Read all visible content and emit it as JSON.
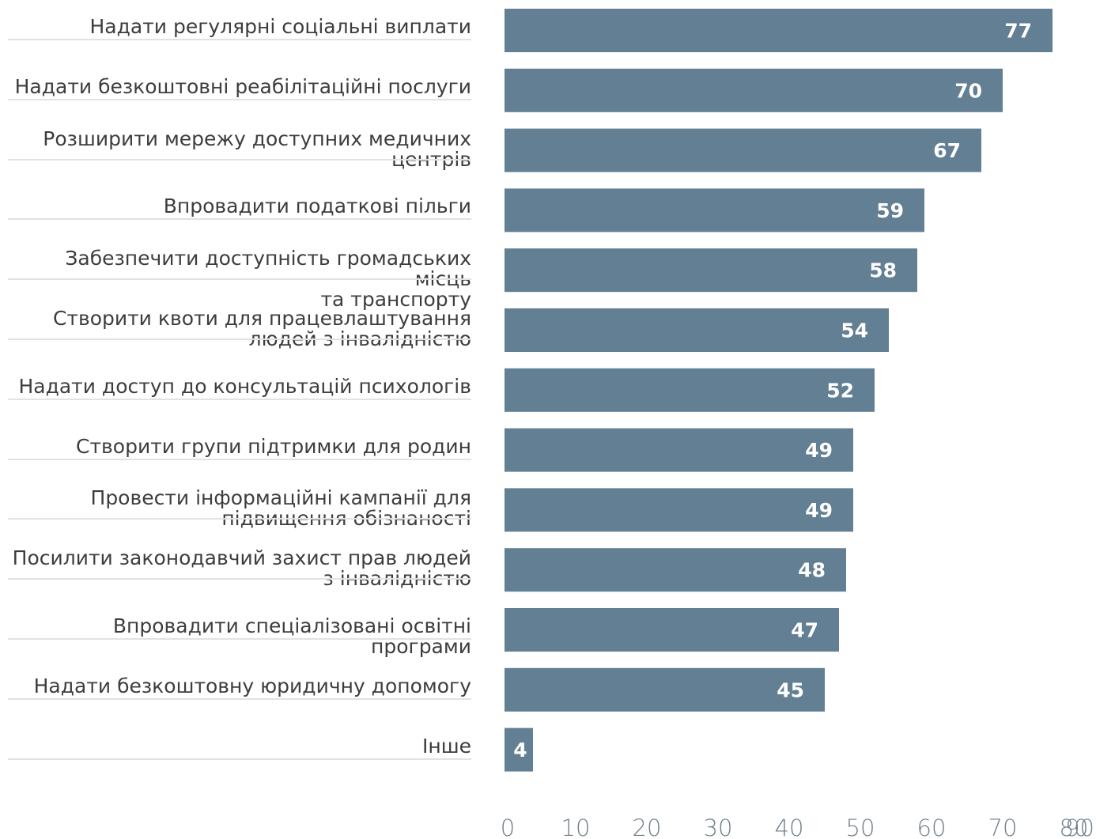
{
  "chart_data": {
    "type": "bar",
    "orientation": "horizontal",
    "title": "",
    "xlabel": "",
    "ylabel": "",
    "xlim": [
      0,
      90
    ],
    "x_ticks": [
      "0",
      "10",
      "20",
      "30",
      "40",
      "50",
      "60",
      "70",
      "80",
      "90"
    ],
    "grid": false,
    "bar_color": "#627f93",
    "label_color": "#ffffff",
    "categories": [
      "Надати регулярні соціальні виплати",
      "Надати безкоштовні реабілітаційні послуги",
      "Розширити мережу доступних медичних центрів",
      "Впровадити податкові пільги",
      "Забезпечити доступність громадських місць та транспорту",
      "Створити квоти для працевлаштування людей з інвалідністю",
      "Надати доступ до консультацій психологів",
      "Створити групи підтримки для родин",
      "Провести інформаційні кампанії для підвищення обізнаності",
      "Посилити законодавчий захист прав людей з інвалідністю",
      "Впровадити спеціалізовані освітні програми",
      "Надати безкоштовну юридичну допомогу",
      "Інше"
    ],
    "category_lines": [
      [
        "Надати регулярні соціальні виплати"
      ],
      [
        "Надати безкоштовні реабілітаційні послуги"
      ],
      [
        "Розширити мережу доступних медичних",
        "центрів"
      ],
      [
        "Впровадити податкові пільги"
      ],
      [
        "Забезпечити доступність громадських місць",
        "та транспорту"
      ],
      [
        "Створити квоти для працевлаштування",
        "людей з інвалідністю"
      ],
      [
        "Надати доступ до консультацій психологів"
      ],
      [
        "Створити групи підтримки для родин"
      ],
      [
        "Провести інформаційні кампанії для",
        "підвищення обізнаності"
      ],
      [
        "Посилити законодавчий захист прав людей",
        "з інвалідністю"
      ],
      [
        "Впровадити спеціалізовані освітні програми"
      ],
      [
        "Надати безкоштовну юридичну допомогу"
      ],
      [
        "Інше"
      ]
    ],
    "values": [
      77,
      70,
      67,
      59,
      58,
      54,
      52,
      49,
      49,
      48,
      47,
      45,
      4
    ]
  }
}
